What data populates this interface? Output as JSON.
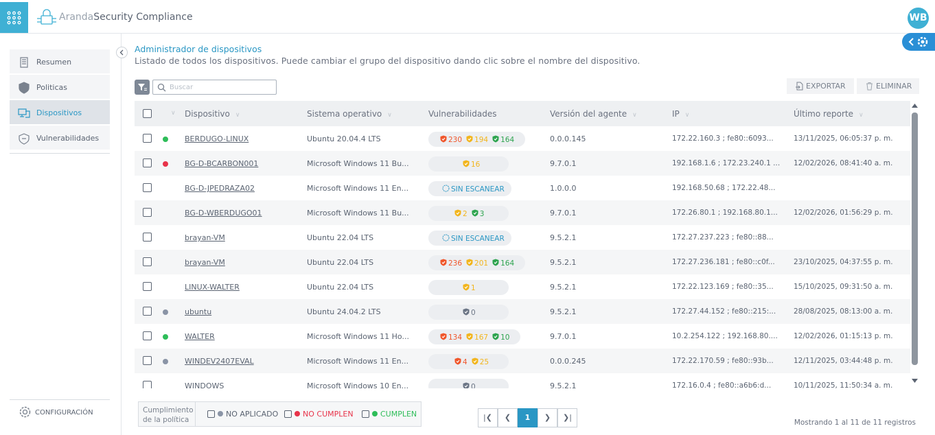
{
  "header": {
    "brand": "Aranda",
    "product": "Security Compliance",
    "avatar": "WB"
  },
  "sidebar": {
    "items": [
      "Resumen",
      "Politicas",
      "Dispositivos",
      "Vulnerabilidades"
    ],
    "active": 2,
    "config": "CONFIGURACIÓN"
  },
  "page": {
    "title": "Administrador de dispositivos",
    "subtitle": "Listado de todos los dispositivos. Puede cambiar el grupo del dispositivo dando clic sobre el nombre del dispositivo."
  },
  "toolbar": {
    "search_placeholder": "Buscar",
    "export": "EXPORTAR",
    "delete": "ELIMINAR"
  },
  "table": {
    "columns": [
      "Dispositivo",
      "Sistema operativo",
      "Vulnerabilidades",
      "Versión del agente",
      "IP",
      "Último reporte"
    ],
    "rows": [
      {
        "status_color": "#2ebd59",
        "name": "BERDUGO-LINUX",
        "os": "Ubuntu 20.04.4 LTS",
        "vulnerabilities": [
          {
            "count": 230,
            "color": "#f0562b"
          },
          {
            "count": 194,
            "color": "#f2b51d"
          },
          {
            "count": 164,
            "color": "#2ea44f"
          }
        ],
        "agent": "0.0.0.145",
        "ip": "172.22.160.3 ; fe80::6093...",
        "report": "13/11/2025, 06:05:37 p. m."
      },
      {
        "status_color": "#e8334a",
        "name": "BG-D-BCARBON001",
        "os": "Microsoft Windows 11 Bu...",
        "vulnerabilities": [
          {
            "count": 16,
            "color": "#f2b51d"
          }
        ],
        "agent": "9.7.0.1",
        "ip": "192.168.1.6 ; 172.23.240.1 ...",
        "report": "12/02/2026, 08:41:40 a. m."
      },
      {
        "status_color": null,
        "name": "BG-D-JPEDRAZA02",
        "os": "Microsoft Windows 11 En...",
        "scan_label": "SIN ESCANEAR",
        "agent": "1.0.0.0",
        "ip": "192.168.50.68 ; 172.22.48...",
        "report": null
      },
      {
        "status_color": null,
        "name": "BG-D-WBERDUGO01",
        "os": "Microsoft Windows 11 Bu...",
        "vulnerabilities": [
          {
            "count": 2,
            "color": "#f2b51d"
          },
          {
            "count": 3,
            "color": "#2ea44f"
          }
        ],
        "agent": "9.7.0.1",
        "ip": "172.26.80.1 ; 192.168.80.1...",
        "report": "12/02/2026, 01:56:29 p. m."
      },
      {
        "status_color": null,
        "name": "brayan-VM",
        "os": "Ubuntu 22.04 LTS",
        "scan_label": "SIN ESCANEAR",
        "agent": "9.5.2.1",
        "ip": "172.27.237.223 ; fe80::88...",
        "report": null
      },
      {
        "status_color": null,
        "name": "brayan-VM",
        "os": "Ubuntu 22.04 LTS",
        "vulnerabilities": [
          {
            "count": 236,
            "color": "#f0562b"
          },
          {
            "count": 201,
            "color": "#f2b51d"
          },
          {
            "count": 164,
            "color": "#2ea44f"
          }
        ],
        "agent": "9.5.2.1",
        "ip": "172.27.236.181 ; fe80::c0f...",
        "report": "23/10/2025, 04:37:55 p. m."
      },
      {
        "status_color": null,
        "name": "LINUX-WALTER",
        "os": "Ubuntu 22.04 LTS",
        "vulnerabilities": [
          {
            "count": 1,
            "color": "#f2b51d"
          }
        ],
        "agent": "9.5.2.1",
        "ip": "172.22.123.169 ; fe80::35...",
        "report": "15/10/2025, 09:31:50 a. m."
      },
      {
        "status_color": "#8a94a6",
        "name": "ubuntu",
        "os": "Ubuntu 24.04.2 LTS",
        "vulnerabilities": [
          {
            "count": 0,
            "color": "#6b7585"
          }
        ],
        "agent": "9.5.2.1",
        "ip": "172.27.44.152 ; fe80::215:...",
        "report": "28/08/2025, 08:13:00 a. m."
      },
      {
        "status_color": "#2ebd59",
        "name": "WALTER",
        "os": "Microsoft Windows 11 Ho...",
        "vulnerabilities": [
          {
            "count": 134,
            "color": "#f0562b"
          },
          {
            "count": 167,
            "color": "#f2b51d"
          },
          {
            "count": 10,
            "color": "#2ea44f"
          }
        ],
        "agent": "9.7.0.1",
        "ip": "10.2.254.122 ; 192.168.80....",
        "report": "12/02/2026, 01:15:13 p. m."
      },
      {
        "status_color": "#8a94a6",
        "name": "WINDEV2407EVAL",
        "os": "Microsoft Windows 11 En...",
        "vulnerabilities": [
          {
            "count": 4,
            "color": "#f0562b"
          },
          {
            "count": 25,
            "color": "#f2b51d"
          }
        ],
        "agent": "0.0.0.245",
        "ip": "172.22.170.59 ; fe80::93b...",
        "report": "12/11/2025, 03:44:48 p. m."
      },
      {
        "status_color": null,
        "name": "WINDOWS",
        "os": "Microsoft Windows 10 En...",
        "vulnerabilities": [
          {
            "count": 0,
            "color": "#6b7585"
          }
        ],
        "agent": "9.5.2.1",
        "ip": "172.16.0.4 ; fe80::a6b6:d...",
        "report": "10/11/2025, 11:50:34 a. m."
      }
    ]
  },
  "footer": {
    "legend_title": "Cumplimiento de la política",
    "legend": [
      {
        "label": "NO APLICADO",
        "color": "#8a94a6"
      },
      {
        "label": "NO CUMPLEN",
        "color": "#e8334a"
      },
      {
        "label": "CUMPLEN",
        "color": "#2ebd59"
      }
    ],
    "page": "1",
    "summary": "Mostrando 1 al 11 de 11 registros"
  }
}
